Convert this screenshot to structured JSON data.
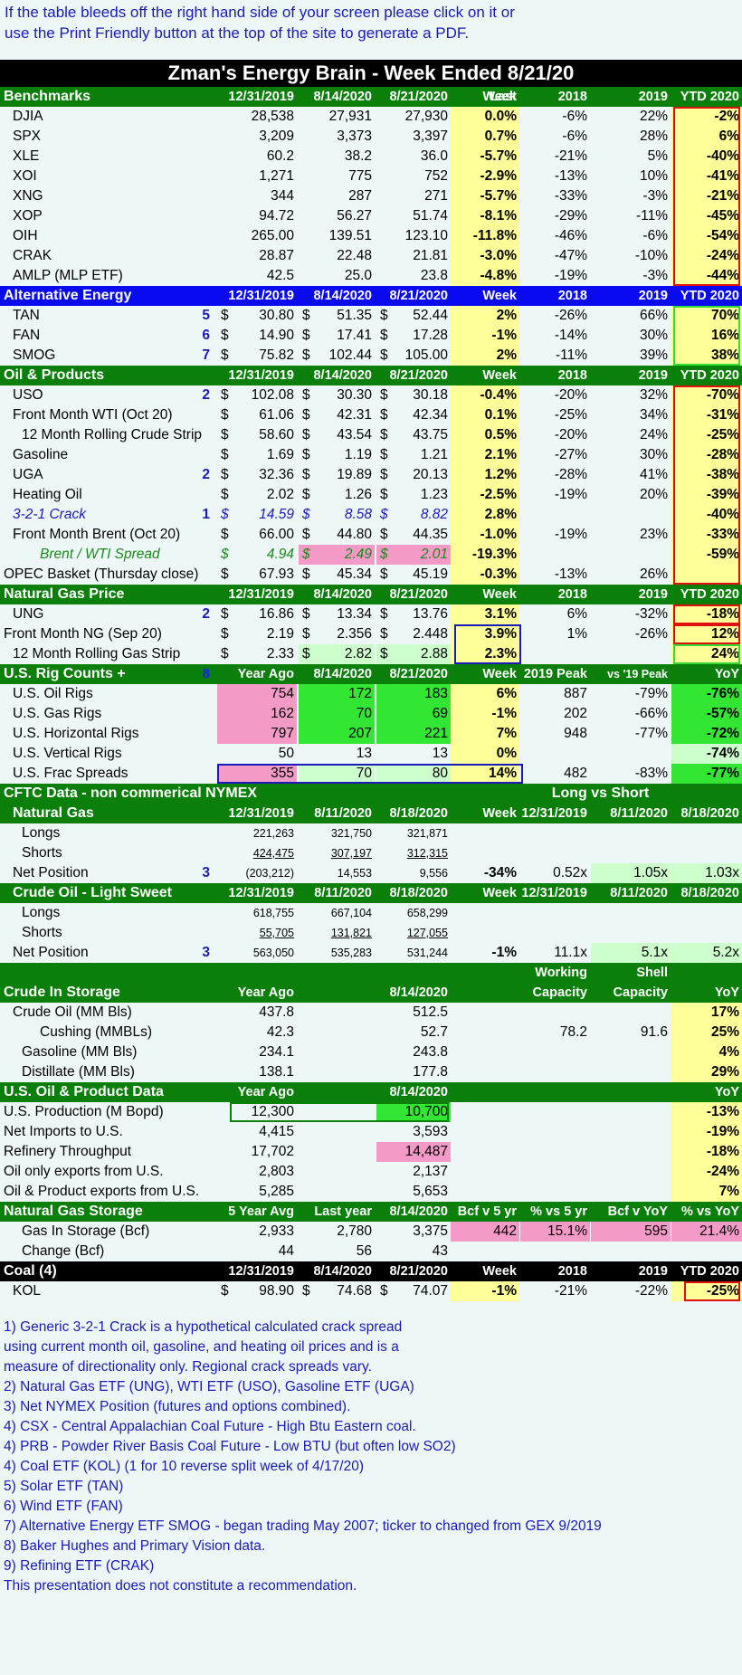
{
  "intro": [
    "If the table bleeds off the right hand side of your screen please click on it or",
    "use the Print Friendly button at the top of the site to generate a PDF."
  ],
  "title": "Zman's Energy Brain - Week Ended 8/21/20",
  "sections": [
    {
      "type": "hdr",
      "style": "green",
      "label": "Benchmarks",
      "top": [
        "",
        "",
        "",
        "Last",
        "",
        "",
        ""
      ],
      "cols": [
        "12/31/2019",
        "8/14/2020",
        "8/21/2020",
        "Week",
        "2018",
        "2019",
        "YTD 2020"
      ]
    },
    {
      "type": "row",
      "label": "DJIA",
      "indent": 1,
      "vals": [
        "28,538",
        "27,931",
        "27,930",
        "0.0%",
        "-6%",
        "22%",
        "-2%"
      ]
    },
    {
      "type": "row",
      "label": "SPX",
      "indent": 1,
      "vals": [
        "3,209",
        "3,373",
        "3,397",
        "0.7%",
        "-6%",
        "28%",
        "6%"
      ]
    },
    {
      "type": "row",
      "label": "XLE",
      "indent": 1,
      "vals": [
        "60.2",
        "38.2",
        "36.0",
        "-5.7%",
        "-21%",
        "5%",
        "-40%"
      ]
    },
    {
      "type": "row",
      "label": "XOI",
      "indent": 1,
      "vals": [
        "1,271",
        "775",
        "752",
        "-2.9%",
        "-13%",
        "10%",
        "-41%"
      ]
    },
    {
      "type": "row",
      "label": "XNG",
      "indent": 1,
      "vals": [
        "344",
        "287",
        "271",
        "-5.7%",
        "-33%",
        "-3%",
        "-21%"
      ]
    },
    {
      "type": "row",
      "label": "XOP",
      "indent": 1,
      "vals": [
        "94.72",
        "56.27",
        "51.74",
        "-8.1%",
        "-29%",
        "-11%",
        "-45%"
      ]
    },
    {
      "type": "row",
      "label": "OIH",
      "indent": 1,
      "vals": [
        "265.00",
        "139.51",
        "123.10",
        "-11.8%",
        "-46%",
        "-6%",
        "-54%"
      ]
    },
    {
      "type": "row",
      "label": "CRAK",
      "indent": 1,
      "vals": [
        "28.87",
        "22.48",
        "21.81",
        "-3.0%",
        "-47%",
        "-10%",
        "-24%"
      ]
    },
    {
      "type": "row",
      "label": "AMLP (MLP ETF)",
      "indent": 1,
      "vals": [
        "42.5",
        "25.0",
        "23.8",
        "-4.8%",
        "-19%",
        "-3%",
        "-44%"
      ]
    },
    {
      "type": "hdr",
      "style": "blue",
      "label": "Alternative Energy",
      "cols": [
        "12/31/2019",
        "8/14/2020",
        "8/21/2020",
        "Week",
        "2018",
        "2019",
        "YTD 2020"
      ]
    },
    {
      "type": "row",
      "label": "TAN",
      "indent": 1,
      "fn": "5",
      "dollar": true,
      "vals": [
        "30.80",
        "51.35",
        "52.44",
        "2%",
        "-26%",
        "66%",
        "70%"
      ]
    },
    {
      "type": "row",
      "label": "FAN",
      "indent": 1,
      "fn": "6",
      "dollar": true,
      "vals": [
        "14.90",
        "17.41",
        "17.28",
        "-1%",
        "-14%",
        "30%",
        "16%"
      ]
    },
    {
      "type": "row",
      "label": "SMOG",
      "indent": 1,
      "fn": "7",
      "dollar": true,
      "vals": [
        "75.82",
        "102.44",
        "105.00",
        "2%",
        "-11%",
        "39%",
        "38%"
      ]
    },
    {
      "type": "hdr",
      "style": "green",
      "label": "Oil & Products",
      "cols": [
        "12/31/2019",
        "8/14/2020",
        "8/21/2020",
        "Week",
        "2018",
        "2019",
        "YTD 2020"
      ]
    },
    {
      "type": "row",
      "label": "USO",
      "indent": 1,
      "fn": "2",
      "dollar": true,
      "vals": [
        "102.08",
        "30.30",
        "30.18",
        "-0.4%",
        "-20%",
        "32%",
        "-70%"
      ]
    },
    {
      "type": "row",
      "label": "Front Month WTI  (Oct 20)",
      "indent": 1,
      "dollar": true,
      "vals": [
        "61.06",
        "42.31",
        "42.34",
        "0.1%",
        "-25%",
        "34%",
        "-31%"
      ]
    },
    {
      "type": "row",
      "label": "12 Month Rolling Crude Strip",
      "indent": 2,
      "dollar": true,
      "vals": [
        "58.60",
        "43.54",
        "43.75",
        "0.5%",
        "-20%",
        "24%",
        "-25%"
      ]
    },
    {
      "type": "row",
      "label": "Gasoline",
      "indent": 1,
      "dollar": true,
      "vals": [
        "1.69",
        "1.19",
        "1.21",
        "2.1%",
        "-27%",
        "30%",
        "-28%"
      ]
    },
    {
      "type": "row",
      "label": "UGA",
      "indent": 1,
      "fn": "2",
      "dollar": true,
      "vals": [
        "32.36",
        "19.89",
        "20.13",
        "1.2%",
        "-28%",
        "41%",
        "-38%"
      ]
    },
    {
      "type": "row",
      "label": "Heating Oil",
      "indent": 1,
      "dollar": true,
      "vals": [
        "2.02",
        "1.26",
        "1.23",
        "-2.5%",
        "-19%",
        "20%",
        "-39%"
      ]
    },
    {
      "type": "row",
      "label": "3-2-1 Crack",
      "indent": 1,
      "fn": "1",
      "dollar": true,
      "style": "blue",
      "vals": [
        "14.59",
        "8.58",
        "8.82",
        "2.8%",
        "",
        "",
        "-40%"
      ]
    },
    {
      "type": "row",
      "label": "Front Month Brent (Oct 20)",
      "indent": 1,
      "dollar": true,
      "vals": [
        "66.00",
        "44.80",
        "44.35",
        "-1.0%",
        "-19%",
        "23%",
        "-33%"
      ]
    },
    {
      "type": "row",
      "label": "Brent / WTI Spread",
      "indent": 3,
      "dollar": true,
      "style": "green",
      "vals": [
        "4.94",
        "2.49",
        "2.01",
        "-19.3%",
        "",
        "",
        "-59%"
      ]
    },
    {
      "type": "row",
      "label": "OPEC Basket (Thursday close)",
      "indent": 0,
      "dollar": true,
      "vals": [
        "67.93",
        "45.34",
        "45.19",
        "-0.3%",
        "-13%",
        "26%",
        ""
      ]
    },
    {
      "type": "hdr",
      "style": "green",
      "label": "Natural Gas Price",
      "cols": [
        "12/31/2019",
        "8/14/2020",
        "8/21/2020",
        "Week",
        "2018",
        "2019",
        "YTD 2020"
      ]
    },
    {
      "type": "row",
      "label": "UNG",
      "indent": 1,
      "fn": "2",
      "dollar": true,
      "vals": [
        "16.86",
        "13.34",
        "13.76",
        "3.1%",
        "6%",
        "-32%",
        "-18%"
      ]
    },
    {
      "type": "row",
      "label": "Front Month NG (Sep 20)",
      "indent": 0,
      "dollar": true,
      "vals": [
        "2.19",
        "2.356",
        "2.448",
        "3.9%",
        "1%",
        "-26%",
        "12%"
      ]
    },
    {
      "type": "row",
      "label": "12 Month Rolling Gas Strip",
      "indent": 1,
      "dollar": true,
      "vals": [
        "2.33",
        "2.82",
        "2.88",
        "2.3%",
        "",
        "",
        "24%"
      ]
    },
    {
      "type": "hdr",
      "style": "green",
      "label": "U.S. Rig Counts +",
      "fn": "8",
      "cols": [
        "Year Ago",
        "8/14/2020",
        "8/21/2020",
        "Week",
        "2019 Peak",
        "vs '19 Peak",
        "YoY"
      ]
    },
    {
      "type": "row",
      "label": "U.S. Oil Rigs",
      "indent": 1,
      "vals": [
        "754",
        "172",
        "183",
        "6%",
        "887",
        "-79%",
        "-76%"
      ]
    },
    {
      "type": "row",
      "label": "U.S. Gas Rigs",
      "indent": 1,
      "vals": [
        "162",
        "70",
        "69",
        "-1%",
        "202",
        "-66%",
        "-57%"
      ]
    },
    {
      "type": "row",
      "label": "U.S. Horizontal Rigs",
      "indent": 1,
      "vals": [
        "797",
        "207",
        "221",
        "7%",
        "948",
        "-77%",
        "-72%"
      ]
    },
    {
      "type": "row",
      "label": "U.S. Vertical Rigs",
      "indent": 1,
      "vals": [
        "50",
        "13",
        "13",
        "0%",
        "",
        "",
        "-74%"
      ]
    },
    {
      "type": "row",
      "label": "U.S. Frac Spreads",
      "indent": 1,
      "vals": [
        "355",
        "70",
        "80",
        "14%",
        "482",
        "-83%",
        "-77%"
      ]
    },
    {
      "type": "hdr",
      "style": "green",
      "label": "CFTC Data - non commerical NYMEX",
      "cols": [
        "",
        "",
        "",
        "",
        "Long vs Short",
        "",
        ""
      ]
    },
    {
      "type": "hdr",
      "style": "green",
      "label": "Natural Gas",
      "indent": 1,
      "cols": [
        "12/31/2019",
        "8/11/2020",
        "8/18/2020",
        "Week",
        "12/31/2019",
        "8/11/2020",
        "8/18/2020"
      ]
    },
    {
      "type": "row",
      "label": "Longs",
      "indent": 2,
      "small": true,
      "vals": [
        "221,263",
        "321,750",
        "321,871",
        "",
        "",
        "",
        ""
      ]
    },
    {
      "type": "row",
      "label": "Shorts",
      "indent": 2,
      "small": true,
      "ul": true,
      "vals": [
        "424,475",
        "307,197",
        "312,315",
        "",
        "",
        "",
        ""
      ]
    },
    {
      "type": "row",
      "label": "Net Position",
      "indent": 1,
      "fn": "3",
      "small": true,
      "vals": [
        "(203,212)",
        "14,553",
        "9,556",
        "-34%",
        "0.52x",
        "1.05x",
        "1.03x"
      ]
    },
    {
      "type": "hdr",
      "style": "green",
      "label": "Crude Oil - Light Sweet",
      "indent": 1,
      "cols": [
        "12/31/2019",
        "8/11/2020",
        "8/18/2020",
        "Week",
        "12/31/2019",
        "8/11/2020",
        "8/18/2020"
      ]
    },
    {
      "type": "row",
      "label": "Longs",
      "indent": 2,
      "small": true,
      "vals": [
        "618,755",
        "667,104",
        "658,299",
        "",
        "",
        "",
        ""
      ]
    },
    {
      "type": "row",
      "label": "Shorts",
      "indent": 2,
      "small": true,
      "ul": true,
      "vals": [
        "55,705",
        "131,821",
        "127,055",
        "",
        "",
        "",
        ""
      ]
    },
    {
      "type": "row",
      "label": "Net Position",
      "indent": 1,
      "fn": "3",
      "small": true,
      "vals": [
        "563,050",
        "535,283",
        "531,244",
        "-1%",
        "11.1x",
        "5.1x",
        "5.2x"
      ]
    },
    {
      "type": "hdr",
      "style": "green",
      "label": "",
      "top": [
        "",
        "",
        "",
        "",
        "Working",
        "Shell",
        ""
      ],
      "tall": true,
      "cols": [
        "Year Ago",
        "",
        "8/14/2020",
        "",
        "Capacity",
        "Capacity",
        "YoY"
      ],
      "label2": "Crude In Storage"
    },
    {
      "type": "row",
      "label": "Crude Oil (MM Bls)",
      "indent": 1,
      "vals": [
        "437.8",
        "",
        "512.5",
        "",
        "",
        "",
        "17%"
      ]
    },
    {
      "type": "row",
      "label": "Cushing (MMBLs)",
      "indent": 3,
      "vals": [
        "42.3",
        "",
        "52.7",
        "",
        "78.2",
        "91.6",
        "25%"
      ]
    },
    {
      "type": "row",
      "label": "Gasoline (MM Bls)",
      "indent": 2,
      "vals": [
        "234.1",
        "",
        "243.8",
        "",
        "",
        "",
        "4%"
      ]
    },
    {
      "type": "row",
      "label": "Distillate (MM Bls)",
      "indent": 2,
      "vals": [
        "138.1",
        "",
        "177.8",
        "",
        "",
        "",
        "29%"
      ]
    },
    {
      "type": "hdr",
      "style": "green",
      "label": "U.S. Oil & Product Data",
      "cols": [
        "Year Ago",
        "",
        "8/14/2020",
        "",
        "",
        "",
        "YoY"
      ]
    },
    {
      "type": "row",
      "label": "U.S. Production (M Bopd)",
      "indent": 0,
      "vals": [
        "12,300",
        "",
        "10,700",
        "",
        "",
        "",
        "-13%"
      ]
    },
    {
      "type": "row",
      "label": "Net Imports to U.S.",
      "indent": 0,
      "vals": [
        "4,415",
        "",
        "3,593",
        "",
        "",
        "",
        "-19%"
      ]
    },
    {
      "type": "row",
      "label": "Refinery Throughput",
      "indent": 0,
      "vals": [
        "17,702",
        "",
        "14,487",
        "",
        "",
        "",
        "-18%"
      ]
    },
    {
      "type": "row",
      "label": "Oil only exports from U.S.",
      "indent": 0,
      "vals": [
        "2,803",
        "",
        "2,137",
        "",
        "",
        "",
        "-24%"
      ]
    },
    {
      "type": "row",
      "label": "Oil & Product exports from U.S.",
      "indent": 0,
      "vals": [
        "5,285",
        "",
        "5,653",
        "",
        "",
        "",
        "7%"
      ]
    },
    {
      "type": "hdr",
      "style": "green",
      "label": "Natural Gas Storage",
      "cols": [
        "5 Year Avg",
        "Last year",
        "8/14/2020",
        "Bcf v 5 yr",
        "% vs 5 yr",
        "Bcf v YoY",
        "% vs YoY"
      ]
    },
    {
      "type": "row",
      "label": "Gas In Storage (Bcf)",
      "indent": 2,
      "vals": [
        "2,933",
        "2,780",
        "3,375",
        "442",
        "15.1%",
        "595",
        "21.4%"
      ]
    },
    {
      "type": "row",
      "label": "Change (Bcf)",
      "indent": 2,
      "vals": [
        "44",
        "56",
        "43",
        "",
        "",
        "",
        ""
      ]
    },
    {
      "type": "hdr",
      "style": "black",
      "label": "Coal (4)",
      "cols": [
        "12/31/2019",
        "8/14/2020",
        "8/21/2020",
        "Week",
        "2018",
        "2019",
        "YTD 2020"
      ]
    },
    {
      "type": "row",
      "label": "KOL",
      "indent": 1,
      "dollar": true,
      "vals": [
        "98.90",
        "74.68",
        "74.07",
        "-1%",
        "-21%",
        "-22%",
        "-25%"
      ]
    }
  ],
  "notes": [
    "1) Generic 3-2-1 Crack is a hypothetical calculated crack spread",
    "using current month oil, gasoline, and heating oil prices and is a",
    "measure of directionality only. Regional crack spreads vary.",
    "2) Natural Gas ETF (UNG), WTI ETF (USO), Gasoline ETF (UGA)",
    "3) Net NYMEX Position (futures and options combined).",
    "4) CSX - Central Appalachian Coal Future - High Btu Eastern coal.",
    "4) PRB - Powder River Basis Coal Future - Low BTU (but often low SO2)",
    "4) Coal ETF (KOL) (1 for 10 reverse split week of 4/17/20)",
    "5) Solar ETF (TAN)",
    "6) Wind ETF (FAN)",
    "7) Alternative Energy ETF SMOG - began trading May 2007; ticker to changed from GEX 9/2019",
    "8) Baker Hughes and Primary Vision data.",
    "9) Refining ETF (CRAK)",
    "This presentation does not constitute a recommendation."
  ],
  "colors": {
    "header_green": "#0a7f0a",
    "header_blue": "#0a0af0",
    "yellow": "#ffff99",
    "pink": "#f49ac6",
    "light_green": "#ccffcc",
    "bright_green": "#33e633",
    "red_box": "#e01010",
    "blue_text": "#1a1ab8"
  }
}
